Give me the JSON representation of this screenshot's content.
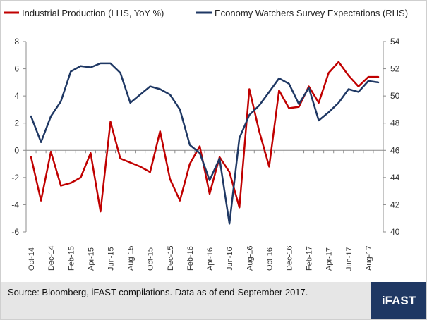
{
  "chart_data": {
    "type": "line",
    "title": "",
    "x": [
      "Oct-14",
      "Nov-14",
      "Dec-14",
      "Jan-15",
      "Feb-15",
      "Mar-15",
      "Apr-15",
      "May-15",
      "Jun-15",
      "Jul-15",
      "Aug-15",
      "Sep-15",
      "Oct-15",
      "Nov-15",
      "Dec-15",
      "Jan-16",
      "Feb-16",
      "Mar-16",
      "Apr-16",
      "May-16",
      "Jun-16",
      "Jul-16",
      "Aug-16",
      "Sep-16",
      "Oct-16",
      "Nov-16",
      "Dec-16",
      "Jan-17",
      "Feb-17",
      "Mar-17",
      "Apr-17",
      "May-17",
      "Jun-17",
      "Jul-17",
      "Aug-17",
      "Sep-17"
    ],
    "x_tick_labels": [
      "Oct-14",
      "Dec-14",
      "Feb-15",
      "Apr-15",
      "Jun-15",
      "Aug-15",
      "Oct-15",
      "Dec-15",
      "Feb-16",
      "Apr-16",
      "Jun-16",
      "Aug-16",
      "Oct-16",
      "Dec-16",
      "Feb-17",
      "Apr-17",
      "Jun-17",
      "Aug-17"
    ],
    "series": [
      {
        "name": "Industrial Production (LHS, YoY %)",
        "axis": "left",
        "color": "#c00000",
        "values": [
          -0.5,
          -3.7,
          -0.1,
          -2.6,
          -2.4,
          -2.0,
          -0.2,
          -4.5,
          2.1,
          -0.6,
          -0.9,
          -1.2,
          -1.6,
          1.4,
          -2.1,
          -3.7,
          -1.0,
          0.3,
          -3.2,
          -0.5,
          -1.6,
          -4.2,
          4.5,
          1.4,
          -1.2,
          4.4,
          3.1,
          3.2,
          4.7,
          3.5,
          5.7,
          6.5,
          5.5,
          4.7,
          5.4,
          5.4
        ]
      },
      {
        "name": "Economy Watchers Survey Expectations (RHS)",
        "axis": "right",
        "color": "#1f3864",
        "values": [
          48.5,
          46.6,
          48.5,
          49.6,
          51.8,
          52.2,
          52.1,
          52.4,
          52.4,
          51.7,
          49.5,
          50.1,
          50.7,
          50.5,
          50.1,
          49.0,
          46.4,
          45.8,
          43.8,
          45.4,
          40.6,
          46.9,
          48.6,
          49.3,
          50.3,
          51.3,
          50.9,
          49.4,
          50.6,
          48.2,
          48.8,
          49.5,
          50.5,
          50.3,
          51.1,
          51.0
        ]
      }
    ],
    "y_left": {
      "ylim": [
        -6,
        8
      ],
      "ticks": [
        -6,
        -4,
        -2,
        0,
        2,
        4,
        6,
        8
      ]
    },
    "y_right": {
      "ylim": [
        40,
        54
      ],
      "ticks": [
        40,
        42,
        44,
        46,
        48,
        50,
        52,
        54
      ]
    },
    "legend": "top",
    "grid": false
  },
  "footer": {
    "source": "Source: Bloomberg, iFAST compilations. Data as of end-September 2017.",
    "logo": "iFAST"
  }
}
